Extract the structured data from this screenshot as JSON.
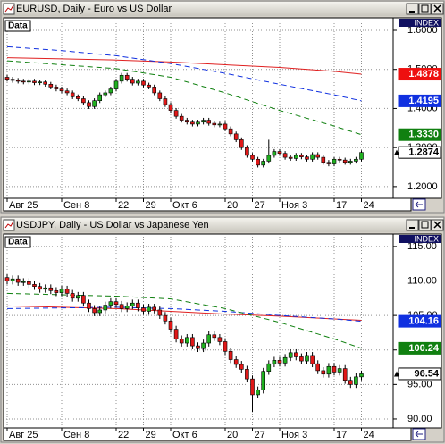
{
  "chart_data": [
    {
      "type": "candlestick",
      "title": "EURUSD, Daily - Euro vs US Dollar",
      "data_label": "Data",
      "axis_badge": "INDEX",
      "categories": [
        "Авг 25",
        null,
        null,
        null,
        null,
        null,
        null,
        null,
        null,
        null,
        "Сен 8",
        null,
        null,
        null,
        null,
        null,
        null,
        null,
        null,
        null,
        "22",
        null,
        null,
        null,
        null,
        "29",
        null,
        null,
        null,
        null,
        "Окт 6",
        null,
        null,
        null,
        null,
        null,
        null,
        null,
        null,
        null,
        "20",
        null,
        null,
        null,
        null,
        "27",
        null,
        null,
        null,
        null,
        "Ноя 3",
        null,
        null,
        null,
        null,
        null,
        null,
        null,
        null,
        null,
        "17",
        null,
        null,
        null,
        null,
        "24"
      ],
      "open": [
        1.48,
        1.475,
        1.472,
        1.47,
        1.468,
        1.47,
        1.466,
        1.468,
        1.462,
        1.455,
        1.45,
        1.445,
        1.44,
        1.43,
        1.425,
        1.415,
        1.405,
        1.42,
        1.435,
        1.44,
        1.45,
        1.47,
        1.485,
        1.475,
        1.465,
        1.47,
        1.46,
        1.455,
        1.44,
        1.425,
        1.41,
        1.395,
        1.38,
        1.37,
        1.365,
        1.36,
        1.365,
        1.37,
        1.362,
        1.358,
        1.36,
        1.348,
        1.335,
        1.32,
        1.3,
        1.28,
        1.27,
        1.255,
        1.265,
        1.28,
        1.29,
        1.285,
        1.275,
        1.272,
        1.28,
        1.276,
        1.27,
        1.282,
        1.275,
        1.262,
        1.258,
        1.27,
        1.268,
        1.262,
        1.265,
        1.27
      ],
      "high": [
        1.486,
        1.481,
        1.478,
        1.476,
        1.476,
        1.476,
        1.474,
        1.474,
        1.468,
        1.461,
        1.456,
        1.451,
        1.446,
        1.436,
        1.431,
        1.421,
        1.426,
        1.441,
        1.446,
        1.456,
        1.476,
        1.491,
        1.491,
        1.481,
        1.476,
        1.476,
        1.466,
        1.461,
        1.446,
        1.431,
        1.416,
        1.401,
        1.386,
        1.376,
        1.371,
        1.371,
        1.376,
        1.376,
        1.368,
        1.366,
        1.366,
        1.354,
        1.341,
        1.326,
        1.306,
        1.286,
        1.276,
        1.271,
        1.32,
        1.296,
        1.296,
        1.291,
        1.281,
        1.286,
        1.286,
        1.282,
        1.288,
        1.288,
        1.281,
        1.268,
        1.276,
        1.276,
        1.274,
        1.271,
        1.276,
        1.293
      ],
      "low": [
        1.469,
        1.466,
        1.464,
        1.462,
        1.462,
        1.46,
        1.46,
        1.456,
        1.449,
        1.444,
        1.439,
        1.434,
        1.424,
        1.419,
        1.409,
        1.399,
        1.399,
        1.414,
        1.429,
        1.434,
        1.444,
        1.464,
        1.469,
        1.459,
        1.459,
        1.454,
        1.449,
        1.434,
        1.419,
        1.404,
        1.389,
        1.374,
        1.364,
        1.359,
        1.354,
        1.354,
        1.359,
        1.356,
        1.352,
        1.352,
        1.342,
        1.329,
        1.314,
        1.294,
        1.274,
        1.264,
        1.249,
        1.249,
        1.259,
        1.274,
        1.279,
        1.269,
        1.266,
        1.266,
        1.27,
        1.264,
        1.264,
        1.269,
        1.256,
        1.252,
        1.252,
        1.262,
        1.256,
        1.256,
        1.259,
        1.264
      ],
      "close": [
        1.475,
        1.472,
        1.47,
        1.468,
        1.47,
        1.466,
        1.468,
        1.462,
        1.455,
        1.45,
        1.445,
        1.44,
        1.43,
        1.425,
        1.415,
        1.405,
        1.42,
        1.435,
        1.44,
        1.45,
        1.47,
        1.485,
        1.475,
        1.465,
        1.47,
        1.46,
        1.455,
        1.44,
        1.425,
        1.41,
        1.395,
        1.38,
        1.37,
        1.365,
        1.36,
        1.365,
        1.37,
        1.362,
        1.358,
        1.36,
        1.348,
        1.335,
        1.32,
        1.3,
        1.28,
        1.27,
        1.255,
        1.265,
        1.28,
        1.29,
        1.285,
        1.275,
        1.272,
        1.28,
        1.276,
        1.27,
        1.282,
        1.275,
        1.262,
        1.258,
        1.27,
        1.268,
        1.262,
        1.265,
        1.27,
        1.2874
      ],
      "up_color": "#20b020",
      "down_color": "#e01818",
      "series": [
        {
          "color": "#e02020",
          "dashed": false,
          "x": [
            0,
            10,
            20,
            30,
            40,
            50,
            60,
            65
          ],
          "values": [
            1.53,
            1.527,
            1.524,
            1.519,
            1.512,
            1.505,
            1.495,
            1.4878
          ]
        },
        {
          "color": "#1030e0",
          "dashed": true,
          "x": [
            0,
            10,
            20,
            30,
            40,
            50,
            60,
            65
          ],
          "values": [
            1.558,
            1.548,
            1.535,
            1.515,
            1.49,
            1.462,
            1.435,
            1.4195
          ]
        },
        {
          "color": "#108010",
          "dashed": true,
          "x": [
            0,
            10,
            20,
            30,
            40,
            50,
            60,
            65
          ],
          "values": [
            1.522,
            1.512,
            1.502,
            1.48,
            1.44,
            1.395,
            1.355,
            1.333
          ]
        }
      ],
      "ylim": [
        1.17,
        1.632
      ],
      "yticks": [
        {
          "value": 1.6,
          "label": "1.6000"
        },
        {
          "value": 1.5,
          "label": "1.5000"
        },
        {
          "value": 1.4,
          "label": "1.4000"
        },
        {
          "value": 1.3,
          "label": "1.3000"
        },
        {
          "value": 1.2,
          "label": "1.2000"
        }
      ],
      "price_labels": [
        {
          "value": 1.4878,
          "label": "1.4878",
          "color": "#ee1010"
        },
        {
          "value": 1.4195,
          "label": "1.4195",
          "color": "#1030e0"
        },
        {
          "value": 1.333,
          "label": "1.3330",
          "color": "#108010"
        },
        {
          "value": 1.2874,
          "label": "1.2874",
          "color": "#ffffff"
        }
      ],
      "grid": true
    },
    {
      "type": "candlestick",
      "title": "USDJPY, Daily - US Dollar vs Japanese Yen",
      "data_label": "Data",
      "axis_badge": "INDEX",
      "categories": [
        "Авг 25",
        null,
        null,
        null,
        null,
        null,
        null,
        null,
        null,
        null,
        "Сен 8",
        null,
        null,
        null,
        null,
        null,
        null,
        null,
        null,
        null,
        "22",
        null,
        null,
        null,
        null,
        "29",
        null,
        null,
        null,
        null,
        "Окт 6",
        null,
        null,
        null,
        null,
        null,
        null,
        null,
        null,
        null,
        "20",
        null,
        null,
        null,
        null,
        "27",
        null,
        null,
        null,
        null,
        "Ноя 3",
        null,
        null,
        null,
        null,
        null,
        null,
        null,
        null,
        null,
        "17",
        null,
        null,
        null,
        null,
        "24"
      ],
      "open": [
        110.5,
        110.0,
        110.3,
        109.8,
        109.9,
        109.5,
        109.2,
        108.8,
        109.0,
        108.6,
        108.3,
        108.8,
        108.2,
        107.5,
        107.9,
        106.8,
        106.0,
        105.4,
        105.8,
        106.5,
        107.0,
        106.6,
        106.0,
        106.4,
        106.8,
        106.1,
        105.6,
        106.2,
        105.8,
        105.0,
        104.2,
        103.0,
        101.6,
        101.0,
        101.8,
        100.6,
        100.2,
        101.0,
        102.2,
        101.8,
        101.2,
        99.8,
        98.6,
        97.9,
        97.2,
        95.8,
        93.5,
        94.2,
        96.9,
        98.0,
        98.5,
        98.1,
        98.9,
        99.6,
        99.0,
        98.4,
        99.2,
        98.0,
        97.0,
        96.5,
        97.6,
        96.8,
        97.3,
        95.6,
        95.0,
        96.1
      ],
      "high": [
        111.0,
        110.8,
        110.8,
        110.4,
        110.4,
        110.0,
        109.7,
        109.5,
        109.5,
        109.1,
        109.3,
        109.3,
        108.7,
        108.4,
        108.4,
        107.3,
        106.5,
        106.3,
        107.0,
        107.5,
        107.5,
        107.1,
        106.9,
        107.3,
        107.3,
        106.6,
        106.7,
        106.7,
        106.3,
        105.5,
        104.7,
        103.5,
        102.1,
        102.3,
        102.3,
        101.1,
        101.5,
        102.7,
        102.7,
        102.3,
        101.7,
        100.3,
        99.1,
        98.4,
        97.7,
        96.3,
        94.7,
        97.4,
        98.5,
        99.0,
        99.0,
        99.4,
        100.1,
        100.1,
        99.5,
        99.7,
        99.7,
        98.5,
        97.5,
        98.1,
        98.1,
        97.8,
        97.8,
        96.1,
        96.6,
        97.0
      ],
      "low": [
        109.5,
        109.5,
        109.3,
        109.3,
        109.0,
        108.7,
        108.3,
        108.3,
        108.1,
        107.8,
        107.8,
        107.7,
        107.0,
        107.0,
        106.3,
        105.5,
        104.9,
        104.9,
        105.3,
        106.0,
        106.1,
        105.5,
        105.5,
        105.9,
        105.6,
        105.1,
        105.1,
        105.3,
        104.5,
        103.7,
        102.5,
        101.1,
        100.5,
        100.5,
        100.1,
        99.7,
        99.7,
        100.5,
        101.3,
        100.7,
        99.3,
        98.1,
        97.4,
        96.7,
        95.3,
        91.0,
        93.0,
        93.7,
        96.4,
        97.5,
        97.6,
        97.6,
        98.4,
        98.5,
        97.9,
        97.9,
        97.5,
        96.5,
        96.0,
        96.0,
        96.3,
        96.3,
        95.1,
        94.5,
        94.5,
        95.6
      ],
      "close": [
        110.0,
        110.3,
        109.8,
        109.9,
        109.5,
        109.2,
        108.8,
        109.0,
        108.6,
        108.3,
        108.8,
        108.2,
        107.5,
        107.9,
        106.8,
        106.0,
        105.4,
        105.8,
        106.5,
        107.0,
        106.6,
        106.0,
        106.4,
        106.8,
        106.1,
        105.6,
        106.2,
        105.8,
        105.0,
        104.2,
        103.0,
        101.6,
        101.0,
        101.8,
        100.6,
        100.2,
        101.0,
        102.2,
        101.8,
        101.2,
        99.8,
        98.6,
        97.9,
        97.2,
        95.8,
        93.5,
        94.2,
        96.9,
        98.0,
        98.5,
        98.1,
        98.9,
        99.6,
        99.0,
        98.4,
        99.2,
        98.0,
        97.0,
        96.5,
        97.6,
        96.8,
        97.3,
        95.6,
        95.0,
        96.1,
        96.54
      ],
      "up_color": "#20b020",
      "down_color": "#e01818",
      "series": [
        {
          "color": "#e02020",
          "dashed": false,
          "x": [
            0,
            10,
            20,
            30,
            40,
            50,
            60,
            65
          ],
          "values": [
            106.4,
            106.2,
            106.0,
            105.6,
            105.2,
            104.9,
            104.5,
            104.3
          ]
        },
        {
          "color": "#1030e0",
          "dashed": true,
          "x": [
            0,
            10,
            20,
            30,
            40,
            50,
            60,
            65
          ],
          "values": [
            106.0,
            106.1,
            106.2,
            106.0,
            105.6,
            105.0,
            104.5,
            104.16
          ]
        },
        {
          "color": "#108010",
          "dashed": true,
          "x": [
            0,
            10,
            20,
            30,
            40,
            50,
            60,
            65
          ],
          "values": [
            108.2,
            108.0,
            107.8,
            107.4,
            106.0,
            104.0,
            101.6,
            100.24
          ]
        }
      ],
      "ylim": [
        88.7,
        116.8
      ],
      "yticks": [
        {
          "value": 115,
          "label": "115.00"
        },
        {
          "value": 110,
          "label": "110.00"
        },
        {
          "value": 105,
          "label": "105.00"
        },
        {
          "value": 100,
          "label": "100.00"
        },
        {
          "value": 95,
          "label": "95.00"
        },
        {
          "value": 90,
          "label": "90.00"
        }
      ],
      "price_labels": [
        {
          "value": 104.16,
          "label": "104.16",
          "color": "#1030e0"
        },
        {
          "value": 100.24,
          "label": "100.24",
          "color": "#108010"
        },
        {
          "value": 96.54,
          "label": "96.54",
          "color": "#ffffff"
        }
      ],
      "grid": true
    }
  ]
}
